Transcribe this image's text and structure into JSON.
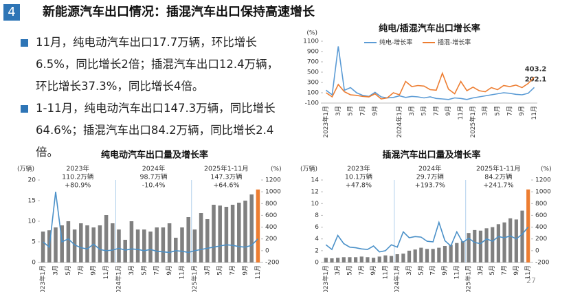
{
  "header": {
    "number": "4",
    "title": "新能源汽车出口情况：插混汽车出口保持高速增长"
  },
  "bullets": [
    "11月，纯电动汽车出口17.7万辆，环比增长6.5%，同比增长2倍；插混汽车出口12.4万辆，环比增长37.3%，同比增长4倍。",
    "1-11月，纯电动汽车出口147.3万辆，同比增长64.6%；插混汽车出口84.2万辆，同比增长2.4倍。"
  ],
  "page_number": "27",
  "chart_data": [
    {
      "type": "line",
      "title": "纯电/插混汽车出口增长率",
      "y_label": "(%)",
      "categories": [
        "2023年1月",
        null,
        "3月",
        null,
        "5月",
        null,
        "7月",
        null,
        "9月",
        null,
        null,
        null,
        "2024年1月",
        null,
        "3月",
        null,
        "5月",
        null,
        "7月",
        null,
        "9月",
        null,
        "11月",
        null,
        "2025年1月",
        null,
        "3月",
        null,
        "5月",
        null,
        "7月",
        null,
        "9月",
        null,
        "11月"
      ],
      "series": [
        {
          "name": "纯电-增长率",
          "color": "#5b9bd5",
          "values": [
            150,
            60,
            1000,
            150,
            200,
            100,
            50,
            30,
            110,
            20,
            0,
            10,
            40,
            10,
            30,
            20,
            0,
            20,
            -10,
            -20,
            -30,
            0,
            -10,
            -30,
            0,
            20,
            40,
            60,
            80,
            100,
            90,
            70,
            60,
            90,
            202.1
          ]
        },
        {
          "name": "插混-增长率",
          "color": "#ed7d31",
          "values": [
            100,
            20,
            260,
            120,
            60,
            50,
            30,
            20,
            80,
            -20,
            0,
            100,
            60,
            320,
            220,
            240,
            230,
            160,
            150,
            480,
            170,
            80,
            320,
            140,
            210,
            140,
            120,
            200,
            160,
            240,
            220,
            250,
            200,
            280,
            403.2
          ]
        }
      ],
      "ylim": [
        -100,
        1100
      ],
      "yticks": [
        -100,
        100,
        300,
        500,
        700,
        900,
        1100
      ]
    },
    {
      "type": "combo",
      "title": "纯电动汽车出口量及增长率",
      "y_label": "(万辆)",
      "y2_label": "(%)",
      "categories": [
        "2023年1月",
        null,
        "3月",
        null,
        "5月",
        null,
        "7月",
        null,
        "9月",
        null,
        "11月",
        null,
        "2024年1月",
        null,
        "3月",
        null,
        "5月",
        null,
        "7月",
        null,
        "9月",
        null,
        "11月",
        null,
        "2025年1月",
        null,
        "3月",
        null,
        "5月",
        null,
        "7月",
        null,
        "9月",
        null,
        "11月"
      ],
      "series": [
        {
          "type": "bar",
          "colors": [
            "#808080",
            "#808080",
            "#808080",
            "#808080",
            "#808080",
            "#808080",
            "#808080",
            "#808080",
            "#808080",
            "#808080",
            "#808080",
            "#808080",
            "#808080",
            "#808080",
            "#808080",
            "#808080",
            "#808080",
            "#808080",
            "#808080",
            "#808080",
            "#808080",
            "#808080",
            "#808080",
            "#808080",
            "#808080",
            "#808080",
            "#808080",
            "#808080",
            "#808080",
            "#808080",
            "#808080",
            "#808080",
            "#808080",
            "#808080",
            "#ed7d31"
          ],
          "values": [
            7.5,
            7.8,
            8.5,
            9,
            10,
            8,
            9.5,
            9,
            8.5,
            9,
            11.5,
            9.5,
            8,
            5.5,
            10,
            8,
            8,
            7.5,
            8.5,
            8.5,
            9.5,
            6,
            8.5,
            11,
            8,
            12,
            10.5,
            14,
            13.8,
            13.5,
            14,
            14.5,
            15,
            16.5,
            17.7
          ]
        },
        {
          "type": "line",
          "axis": "y2",
          "color": "#4a90c8",
          "values": [
            150,
            60,
            1000,
            150,
            200,
            100,
            50,
            30,
            110,
            20,
            0,
            10,
            40,
            10,
            30,
            20,
            0,
            20,
            -10,
            -20,
            -30,
            0,
            -10,
            -30,
            0,
            20,
            40,
            60,
            80,
            100,
            90,
            70,
            60,
            90,
            202.1
          ]
        }
      ],
      "ylim": [
        0,
        20
      ],
      "yticks": [
        0,
        5,
        10,
        15,
        20
      ],
      "y2lim": [
        -200,
        1200
      ],
      "y2ticks": [
        -200,
        0,
        200,
        400,
        600,
        800,
        1000,
        1200
      ],
      "annotations": [
        {
          "lines": [
            "2023年",
            "110.2万辆",
            "+80.9%"
          ],
          "color": "#222222"
        },
        {
          "lines": [
            "2024年",
            "98.7万辆",
            "-10.4%"
          ],
          "color": "#e02020"
        },
        {
          "lines": [
            "2025年1-11月",
            "147.3万辆",
            "+64.6%"
          ],
          "color": "#222222"
        }
      ]
    },
    {
      "type": "combo",
      "title": "插混汽车出口量及增长率",
      "y_label": "(万辆)",
      "y2_label": "(%)",
      "categories": [
        "2023年1月",
        null,
        "3月",
        null,
        "5月",
        null,
        "7月",
        null,
        "9月",
        null,
        "11月",
        null,
        "2024年1月",
        null,
        "3月",
        null,
        "5月",
        null,
        "7月",
        null,
        "9月",
        null,
        "11月",
        null,
        "2025年1月",
        null,
        "3月",
        null,
        "5月",
        null,
        "7月",
        null,
        "9月",
        null,
        "11月"
      ],
      "series": [
        {
          "type": "bar",
          "colors": [
            "#808080",
            "#808080",
            "#808080",
            "#808080",
            "#808080",
            "#808080",
            "#808080",
            "#808080",
            "#808080",
            "#808080",
            "#808080",
            "#808080",
            "#808080",
            "#808080",
            "#808080",
            "#808080",
            "#808080",
            "#808080",
            "#808080",
            "#808080",
            "#808080",
            "#808080",
            "#808080",
            "#808080",
            "#808080",
            "#808080",
            "#808080",
            "#808080",
            "#808080",
            "#808080",
            "#808080",
            "#808080",
            "#808080",
            "#808080",
            "#ed7d31"
          ],
          "values": [
            0.8,
            0.7,
            0.8,
            0.9,
            0.9,
            0.9,
            1,
            0.9,
            0.8,
            1,
            1.2,
            1.1,
            1.4,
            1.5,
            2,
            2.2,
            2.5,
            2.3,
            2.3,
            2.5,
            2.8,
            3,
            3.3,
            3.6,
            5,
            5.5,
            5.4,
            5.8,
            6,
            6.5,
            6.8,
            7.5,
            7.3,
            8.8,
            12.4
          ]
        },
        {
          "type": "line",
          "axis": "y2",
          "color": "#4a90c8",
          "values": [
            100,
            20,
            260,
            120,
            60,
            50,
            30,
            20,
            80,
            -20,
            0,
            100,
            60,
            320,
            220,
            240,
            230,
            160,
            150,
            480,
            170,
            80,
            320,
            140,
            210,
            140,
            120,
            200,
            160,
            240,
            220,
            250,
            200,
            280,
            403.2
          ]
        }
      ],
      "ylim": [
        0,
        14
      ],
      "yticks": [
        0,
        2,
        4,
        6,
        8,
        10,
        12,
        14
      ],
      "y2lim": [
        -200,
        1200
      ],
      "y2ticks": [
        -200,
        0,
        200,
        400,
        600,
        800,
        1000,
        1200
      ],
      "annotations": [
        {
          "lines": [
            "2023年",
            "10.1万辆",
            "+47.8%"
          ],
          "color": "#222222"
        },
        {
          "lines": [
            "2024年",
            "29.7万辆",
            "+193.7%"
          ],
          "color": "#222222"
        },
        {
          "lines": [
            "2025年1-11月",
            "84.2万辆",
            "+241.7%"
          ],
          "color": "#222222"
        }
      ]
    }
  ]
}
